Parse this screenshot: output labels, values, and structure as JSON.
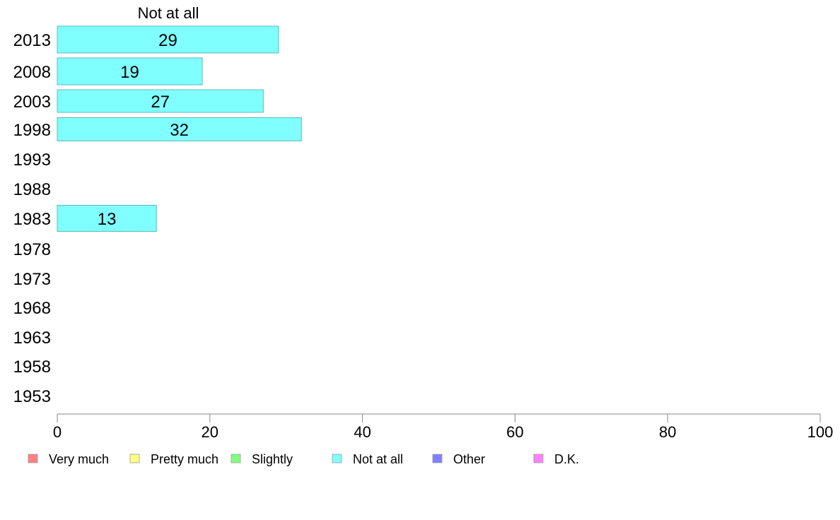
{
  "chart_data": {
    "type": "bar",
    "orientation": "horizontal",
    "title": "Not at all",
    "categories": [
      "2013",
      "2008",
      "2003",
      "1998",
      "1993",
      "1988",
      "1983",
      "1978",
      "1973",
      "1968",
      "1963",
      "1958",
      "1953"
    ],
    "series": [
      {
        "name": "Not at all",
        "color": "#80ffff",
        "values": [
          29,
          19,
          27,
          32,
          null,
          null,
          13,
          null,
          null,
          null,
          null,
          null,
          null
        ],
        "labels": [
          "29",
          "19",
          "27",
          "32",
          "",
          "",
          "13",
          "",
          "",
          "",
          "",
          "",
          ""
        ]
      }
    ],
    "xlim": [
      0,
      100
    ],
    "xticks": [
      0,
      20,
      40,
      60,
      80,
      100
    ],
    "grid": false,
    "legend_position": "bottom",
    "legend": [
      {
        "label": "Very much",
        "color": "#ff8080"
      },
      {
        "label": "Pretty much",
        "color": "#ffff80"
      },
      {
        "label": "Slightly",
        "color": "#80ff80"
      },
      {
        "label": "Not at all",
        "color": "#80ffff"
      },
      {
        "label": "Other",
        "color": "#8080ff"
      },
      {
        "label": "D.K.",
        "color": "#ff80ff"
      }
    ]
  }
}
